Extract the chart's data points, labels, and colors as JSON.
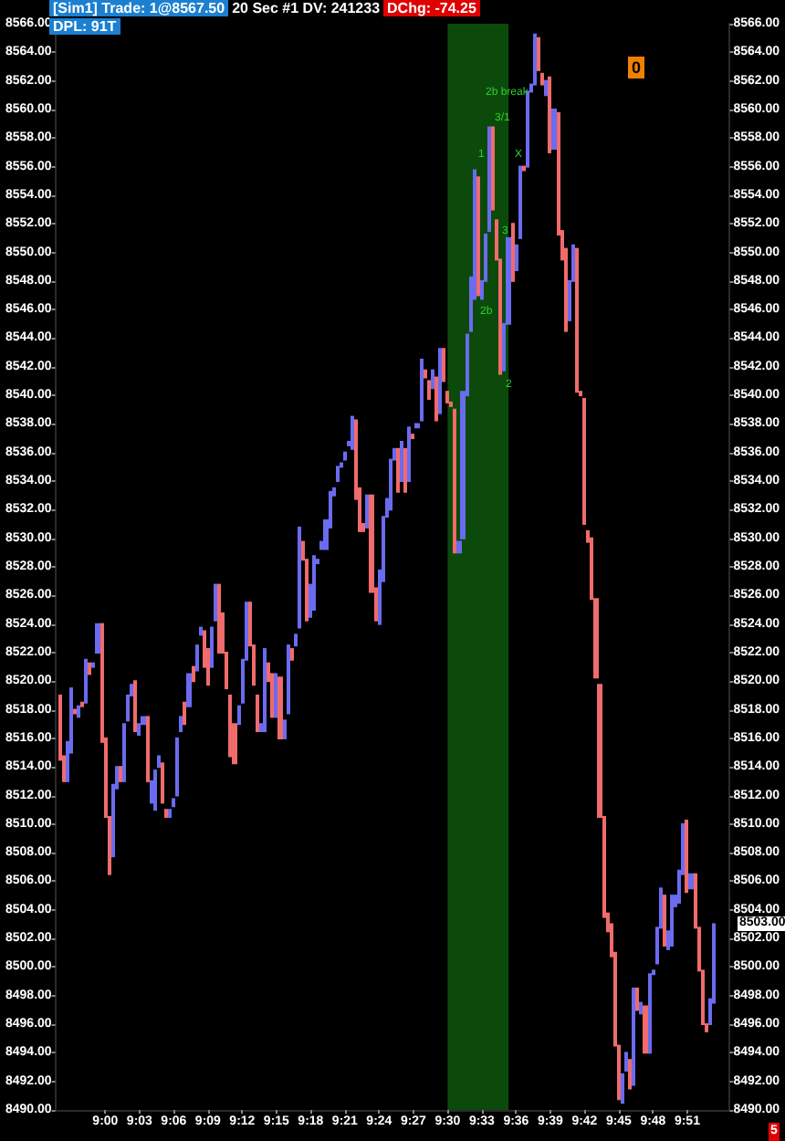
{
  "chart_data": {
    "type": "candlestick",
    "title": "[Sim1]  Trade: 1@8567.50",
    "subtitle": "20 Sec  #1 DV: 241233",
    "annotations": [
      "DChg: -74.25",
      "DPL: 91T",
      "0",
      "5",
      "2b break",
      "3/1",
      "1",
      "X",
      "3",
      "2b",
      "2",
      "8503.00"
    ],
    "colors": [
      "#f06b6b",
      "#f06b6b",
      "#6b6bf0",
      "#6b6bf0",
      "#f06b6b",
      "#6b6bf0",
      "#f06b6b",
      "#6b6bf0",
      "#f06b6b",
      "#6b6bf0",
      "#6b6bf0",
      "#f06b6b",
      "#f06b6b",
      "#f06b6b",
      "#6b6bf0",
      "#6b6bf0",
      "#f06b6b",
      "#6b6bf0",
      "#6b6bf0",
      "#6b6bf0",
      "#f06b6b",
      "#6b6bf0",
      "#6b6bf0",
      "#f06b6b",
      "#6b6bf0",
      "#6b6bf0",
      "#6b6bf0",
      "#f06b6b",
      "#f06b6b",
      "#6b6bf0",
      "#6b6bf0",
      "#6b6bf0",
      "#6b6bf0",
      "#f06b6b",
      "#6b6bf0",
      "#f06b6b",
      "#6b6bf0",
      "#6b6bf0",
      "#f06b6b",
      "#f06b6b",
      "#6b6bf0",
      "#6b6bf0",
      "#f06b6b",
      "#f06b6b",
      "#f06b6b",
      "#f06b6b",
      "#f06b6b",
      "#6b6bf0",
      "#6b6bf0",
      "#6b6bf0",
      "#f06b6b",
      "#f06b6b",
      "#f06b6b",
      "#6b6bf0",
      "#6b6bf0",
      "#f06b6b",
      "#f06b6b",
      "#6b6bf0",
      "#f06b6b",
      "#6b6bf0",
      "#6b6bf0",
      "#f06b6b",
      "#6b6bf0",
      "#6b6bf0",
      "#f06b6b",
      "#f06b6b",
      "#6b6bf0",
      "#6b6bf0",
      "#6b6bf0",
      "#6b6bf0",
      "#6b6bf0",
      "#6b6bf0",
      "#6b6bf0",
      "#6b6bf0",
      "#6b6bf0",
      "#6b6bf0",
      "#6b6bf0",
      "#6b6bf0",
      "#f06b6b",
      "#f06b6b",
      "#f06b6b",
      "#6b6bf0",
      "#f06b6b",
      "#f06b6b",
      "#6b6bf0",
      "#6b6bf0",
      "#6b6bf0",
      "#6b6bf0",
      "#6b6bf0",
      "#f06b6b",
      "#6b6bf0",
      "#f06b6b",
      "#6b6bf0",
      "#f06b6b",
      "#6b6bf0",
      "#6b6bf0",
      "#f06b6b",
      "#f06b6b",
      "#6b6bf0",
      "#f06b6b",
      "#6b6bf0",
      "#f06b6b",
      "#f06b6b",
      "#f06b6b",
      "#f06b6b",
      "#6b6bf0",
      "#6b6bf0",
      "#6b6bf0",
      "#6b6bf0",
      "#6b6bf0",
      "#f06b6b",
      "#6b6bf0",
      "#6b6bf0",
      "#6b6bf0",
      "#f06b6b",
      "#f06b6b",
      "#f06b6b",
      "#6b6bf0",
      "#6b6bf0",
      "#f06b6b",
      "#6b6bf0",
      "#6b6bf0",
      "#f06b6b",
      "#6b6bf0",
      "#6b6bf0",
      "#6b6bf0",
      "#f06b6b",
      "#f06b6b",
      "#6b6bf0",
      "#f06b6b",
      "#6b6bf0",
      "#f06b6b",
      "#f06b6b",
      "#f06b6b",
      "#6b6bf0",
      "#6b6bf0",
      "#f06b6b",
      "#f06b6b",
      "#f06b6b",
      "#f06b6b",
      "#f06b6b",
      "#f06b6b",
      "#f06b6b",
      "#f06b6b",
      "#f06b6b",
      "#f06b6b",
      "#f06b6b",
      "#f06b6b",
      "#6b6bf0",
      "#6b6bf0",
      "#f06b6b",
      "#6b6bf0",
      "#f06b6b",
      "#6b6bf0",
      "#f06b6b",
      "#6b6bf0",
      "#6b6bf0",
      "#6b6bf0",
      "#6b6bf0",
      "#f06b6b",
      "#6b6bf0",
      "#6b6bf0",
      "#6b6bf0",
      "#6b6bf0",
      "#6b6bf0",
      "#f06b6b",
      "#6b6bf0",
      "#f06b6b",
      "#f06b6b",
      "#f06b6b",
      "#f06b6b",
      "#6b6bf0",
      "#6b6bf0"
    ],
    "x": [
      8.9333,
      8.9389,
      8.9444,
      8.95,
      8.9556,
      8.9611,
      8.9667,
      8.9722,
      8.9778,
      8.9833,
      8.9889,
      8.9944,
      9.0,
      9.0056,
      9.0111,
      9.0167,
      9.0222,
      9.0278,
      9.0333,
      9.0389,
      9.0444,
      9.05,
      9.0556,
      9.0611,
      9.0667,
      9.0722,
      9.0778,
      9.0833,
      9.0889,
      9.0944,
      9.1,
      9.1056,
      9.1111,
      9.1167,
      9.1222,
      9.1278,
      9.1333,
      9.1389,
      9.1444,
      9.15,
      9.1556,
      9.1611,
      9.1667,
      9.1722,
      9.1778,
      9.1833,
      9.1889,
      9.1944,
      9.2,
      9.2056,
      9.2111,
      9.2167,
      9.2222,
      9.2278,
      9.2333,
      9.2389,
      9.2444,
      9.25,
      9.2556,
      9.2611,
      9.2667,
      9.2722,
      9.2778,
      9.2833,
      9.2889,
      9.2944,
      9.3,
      9.3056,
      9.3111,
      9.3167,
      9.3222,
      9.3278,
      9.3333,
      9.3389,
      9.3444,
      9.35,
      9.3556,
      9.3611,
      9.3667,
      9.3722,
      9.3778,
      9.3833,
      9.3889,
      9.3944,
      9.4,
      9.4056,
      9.4111,
      9.4167,
      9.4222,
      9.4278,
      9.4333,
      9.4389,
      9.4444,
      9.45,
      9.4556,
      9.4611,
      9.4667,
      9.4722,
      9.4778,
      9.4833,
      9.4889,
      9.4944,
      9.5,
      9.5056,
      9.5111,
      9.5167,
      9.5222,
      9.5278,
      9.5333,
      9.5389,
      9.5444,
      9.55,
      9.5556,
      9.5611,
      9.5667,
      9.5722,
      9.5778,
      9.5833,
      9.5889,
      9.5944,
      9.6,
      9.6056,
      9.6111,
      9.6167,
      9.6222,
      9.6278,
      9.6333,
      9.6389,
      9.6444,
      9.65,
      9.6556,
      9.6611,
      9.6667,
      9.6722,
      9.6778,
      9.6833,
      9.6889,
      9.6944,
      9.7,
      9.7056,
      9.7111,
      9.7167,
      9.7222,
      9.7278,
      9.7333,
      9.7389,
      9.7444,
      9.75,
      9.7556,
      9.7611,
      9.7667,
      9.7722,
      9.7778,
      9.7833,
      9.7889,
      9.7944,
      9.8,
      9.8056,
      9.8111,
      9.8167,
      9.8222,
      9.8278,
      9.8333,
      9.8389,
      9.8444,
      9.85,
      9.8556,
      9.8611,
      9.8667,
      9.8722,
      9.8778,
      9.8833,
      9.8889
    ],
    "ohlc": [
      [
        8519,
        8519,
        8514.5,
        8514.5
      ],
      [
        8514.75,
        8514.75,
        8513,
        8513
      ],
      [
        8513,
        8515.75,
        8513,
        8515.75
      ],
      [
        8515,
        8519.5,
        8515,
        8519.5
      ],
      [
        8518,
        8518,
        8517.75,
        8517.75
      ],
      [
        8517.5,
        8518.25,
        8517.5,
        8518.25
      ],
      [
        8518.5,
        8518.5,
        8518.25,
        8518.25
      ],
      [
        8518.5,
        8521.5,
        8518.5,
        8521.5
      ],
      [
        8521.25,
        8521.25,
        8520.5,
        8520.5
      ],
      [
        8521,
        8521.25,
        8521,
        8521.25
      ],
      [
        8522,
        8524,
        8522,
        8524
      ],
      [
        8524,
        8524,
        8515.75,
        8515.75
      ],
      [
        8516,
        8516,
        8510.5,
        8510.5
      ],
      [
        8510.5,
        8510.5,
        8506.5,
        8506.5
      ],
      [
        8507.75,
        8512.75,
        8507.75,
        8512.75
      ],
      [
        8512.5,
        8514,
        8512.5,
        8514
      ],
      [
        8514,
        8514,
        8513,
        8513
      ],
      [
        8513,
        8517,
        8513,
        8517
      ],
      [
        8517.25,
        8519,
        8517.25,
        8519
      ],
      [
        8519,
        8519.75,
        8519,
        8519.75
      ],
      [
        8520,
        8520,
        8516.5,
        8516.5
      ],
      [
        8516.25,
        8517,
        8516.25,
        8517
      ],
      [
        8517,
        8517.5,
        8517,
        8517.5
      ],
      [
        8517.5,
        8517.5,
        8513,
        8513
      ],
      [
        8511.5,
        8513,
        8511.5,
        8513
      ],
      [
        8511,
        8513.75,
        8511,
        8513.75
      ],
      [
        8514,
        8514.75,
        8514,
        8514.75
      ],
      [
        8514.25,
        8514.25,
        8511.5,
        8511.5
      ],
      [
        8511,
        8511,
        8510.5,
        8510.5
      ],
      [
        8510.5,
        8511,
        8510.5,
        8511
      ],
      [
        8511.25,
        8511.75,
        8511.25,
        8511.75
      ],
      [
        8512,
        8516,
        8512,
        8516
      ],
      [
        8516.5,
        8517.5,
        8516.5,
        8517.5
      ],
      [
        8518.5,
        8518.5,
        8517,
        8517
      ],
      [
        8518.25,
        8520.5,
        8518.25,
        8520.5
      ],
      [
        8521,
        8521,
        8520,
        8520
      ],
      [
        8520.75,
        8522.5,
        8520.75,
        8522.5
      ],
      [
        8523.25,
        8523.75,
        8523.25,
        8523.75
      ],
      [
        8523.5,
        8523.5,
        8521,
        8521
      ],
      [
        8522.25,
        8522.25,
        8519.75,
        8519.75
      ],
      [
        8521,
        8523.75,
        8521,
        8523.75
      ],
      [
        8524.25,
        8526.75,
        8524.25,
        8526.75
      ],
      [
        8526.75,
        8526.75,
        8522,
        8522
      ],
      [
        8524.75,
        8524.75,
        8522,
        8522
      ],
      [
        8522,
        8522,
        8519.5,
        8519.5
      ],
      [
        8519,
        8519,
        8514.75,
        8514.75
      ],
      [
        8517,
        8517,
        8514.25,
        8514.25
      ],
      [
        8517,
        8518.25,
        8517,
        8518.25
      ],
      [
        8518.5,
        8521.5,
        8518.5,
        8521.5
      ],
      [
        8521.5,
        8525.5,
        8521.5,
        8525.5
      ],
      [
        8525.5,
        8525.5,
        8522.5,
        8522.5
      ],
      [
        8522.5,
        8522.5,
        8519.75,
        8519.75
      ],
      [
        8519,
        8519,
        8516.5,
        8516.5
      ],
      [
        8516.5,
        8517,
        8516.5,
        8517
      ],
      [
        8516.5,
        8522.25,
        8516.5,
        8522.25
      ],
      [
        8521.25,
        8521.25,
        8520,
        8520
      ],
      [
        8520.5,
        8520.5,
        8517.5,
        8517.5
      ],
      [
        8517.5,
        8520.5,
        8517.5,
        8520.5
      ],
      [
        8520.25,
        8520.25,
        8516,
        8516
      ],
      [
        8516,
        8517.25,
        8516,
        8517.25
      ],
      [
        8517.75,
        8522.5,
        8517.75,
        8522.5
      ],
      [
        8522.25,
        8522.25,
        8521.5,
        8521.5
      ],
      [
        8522.5,
        8523.25,
        8522.5,
        8523.25
      ],
      [
        8523.75,
        8530.75,
        8523.75,
        8530.75
      ],
      [
        8529.75,
        8529.75,
        8528.5,
        8528.5
      ],
      [
        8528.5,
        8528.5,
        8524.25,
        8524.25
      ],
      [
        8524.5,
        8526.75,
        8524.5,
        8526.75
      ],
      [
        8525,
        8528.75,
        8525,
        8528.75
      ],
      [
        8528.25,
        8528.5,
        8528.25,
        8528.5
      ],
      [
        8529.25,
        8529.75,
        8529.25,
        8529.75
      ],
      [
        8529.25,
        8531.25,
        8529.25,
        8531.25
      ],
      [
        8530.75,
        8533.25,
        8530.75,
        8533.25
      ],
      [
        8533,
        8533.5,
        8533,
        8533.5
      ],
      [
        8534,
        8535,
        8534,
        8535
      ],
      [
        8535,
        8535.25,
        8535,
        8535.25
      ],
      [
        8535.5,
        8536,
        8535.5,
        8536
      ],
      [
        8536.5,
        8536.75,
        8536.5,
        8536.75
      ],
      [
        8536.25,
        8538.5,
        8536.25,
        8538.5
      ],
      [
        8538.25,
        8538.25,
        8532.75,
        8532.75
      ],
      [
        8533.5,
        8533.5,
        8530.5,
        8530.5
      ],
      [
        8531,
        8531,
        8530.5,
        8530.5
      ],
      [
        8530.75,
        8533,
        8530.75,
        8533
      ],
      [
        8533,
        8533,
        8526.25,
        8526.25
      ],
      [
        8526.5,
        8526.5,
        8524.25,
        8524.25
      ],
      [
        8524,
        8527.75,
        8524,
        8527.75
      ],
      [
        8527,
        8531.5,
        8527,
        8531.5
      ],
      [
        8531.5,
        8532.75,
        8531.5,
        8532.75
      ],
      [
        8532,
        8535.5,
        8532,
        8535.5
      ],
      [
        8535.5,
        8536.25,
        8535.5,
        8536.25
      ],
      [
        8536.25,
        8536.25,
        8533.25,
        8533.25
      ],
      [
        8534,
        8536.75,
        8534,
        8536.75
      ],
      [
        8536.25,
        8536.25,
        8533.25,
        8533.25
      ],
      [
        8534,
        8537.75,
        8534,
        8537.75
      ],
      [
        8537.25,
        8537.25,
        8537,
        8537
      ],
      [
        8537.75,
        8538,
        8537.75,
        8538
      ],
      [
        8538.25,
        8542.5,
        8538.25,
        8542.5
      ],
      [
        8541.75,
        8541.75,
        8541.25,
        8541.25
      ],
      [
        8541,
        8541,
        8539.75,
        8539.75
      ],
      [
        8540.5,
        8541.75,
        8540.5,
        8541.75
      ],
      [
        8541.25,
        8541.25,
        8538.25,
        8538.25
      ],
      [
        8538.75,
        8543.25,
        8538.75,
        8543.25
      ],
      [
        8543.25,
        8543.25,
        8541,
        8541
      ],
      [
        8540.25,
        8540.25,
        8539.5,
        8539.5
      ],
      [
        8539.5,
        8539.5,
        8539.25,
        8539.25
      ],
      [
        8539,
        8539,
        8529,
        8529
      ],
      [
        8529,
        8529.75,
        8529,
        8529.75
      ],
      [
        8530,
        8540.25,
        8530,
        8540.25
      ],
      [
        8540,
        8544.25,
        8540,
        8544.25
      ],
      [
        8544.5,
        8548.25,
        8544.5,
        8548.25
      ],
      [
        8546.75,
        8555.75,
        8546.75,
        8555.75
      ],
      [
        8555.25,
        8555.25,
        8547,
        8547
      ],
      [
        8546.75,
        8548,
        8546.75,
        8548
      ],
      [
        8548,
        8551.25,
        8548,
        8551.25
      ],
      [
        8551.5,
        8558.75,
        8551.5,
        8558.75
      ],
      [
        8558.75,
        8558.75,
        8553,
        8553
      ],
      [
        8552.25,
        8552.25,
        8549.5,
        8549.5
      ],
      [
        8549.5,
        8549.5,
        8541.5,
        8541.5
      ],
      [
        8541.75,
        8545,
        8541.75,
        8545
      ],
      [
        8545,
        8551,
        8545,
        8551
      ],
      [
        8552,
        8552,
        8548,
        8548
      ],
      [
        8548.75,
        8550.5,
        8548.75,
        8550.5
      ],
      [
        8551,
        8556,
        8551,
        8556
      ],
      [
        8556,
        8556,
        8555.75,
        8555.75
      ],
      [
        8556,
        8561.25,
        8556,
        8561.25
      ],
      [
        8561.25,
        8561.75,
        8561.25,
        8561.75
      ],
      [
        8561.75,
        8565.25,
        8561.75,
        8565.25
      ],
      [
        8565,
        8565,
        8562.75,
        8562.75
      ],
      [
        8562.5,
        8562.5,
        8561.75,
        8561.75
      ],
      [
        8561,
        8562,
        8561,
        8562
      ],
      [
        8562.25,
        8562.25,
        8557,
        8557
      ],
      [
        8557.25,
        8560,
        8557.25,
        8560
      ],
      [
        8559.75,
        8559.75,
        8551.25,
        8551.25
      ],
      [
        8551.5,
        8551.5,
        8549.5,
        8549.5
      ],
      [
        8550.25,
        8550.25,
        8544.5,
        8544.5
      ],
      [
        8545.25,
        8548,
        8545.25,
        8548
      ],
      [
        8548,
        8550.5,
        8548,
        8550.5
      ],
      [
        8550.25,
        8550.25,
        8540.25,
        8540.25
      ],
      [
        8540.25,
        8540.25,
        8540,
        8540
      ],
      [
        8539.75,
        8539.75,
        8531,
        8531
      ],
      [
        8530.5,
        8530.5,
        8529.75,
        8529.75
      ],
      [
        8530,
        8530,
        8525.75,
        8525.75
      ],
      [
        8525.75,
        8525.75,
        8520.25,
        8520.25
      ],
      [
        8519.75,
        8519.75,
        8510.5,
        8510.5
      ],
      [
        8510.5,
        8510.5,
        8503.5,
        8503.5
      ],
      [
        8503.75,
        8503.75,
        8502.5,
        8502.5
      ],
      [
        8503,
        8503,
        8500.75,
        8500.75
      ],
      [
        8501,
        8501,
        8494.5,
        8494.5
      ],
      [
        8494.5,
        8494.5,
        8490.75,
        8490.75
      ],
      [
        8490.5,
        8492.5,
        8490.5,
        8492.5
      ],
      [
        8492.75,
        8494,
        8492.75,
        8494
      ],
      [
        8493.5,
        8493.5,
        8491.5,
        8491.5
      ],
      [
        8491.75,
        8498.5,
        8491.75,
        8498.5
      ],
      [
        8498.5,
        8498.5,
        8497,
        8497
      ],
      [
        8496.75,
        8497.5,
        8496.75,
        8497.5
      ],
      [
        8497.25,
        8497.25,
        8494,
        8494
      ],
      [
        8494,
        8499.5,
        8494,
        8499.5
      ],
      [
        8499.5,
        8499.75,
        8499.5,
        8499.75
      ],
      [
        8500.25,
        8502.75,
        8500.25,
        8502.75
      ],
      [
        8502.75,
        8505.5,
        8502.75,
        8505.5
      ],
      [
        8505,
        8505,
        8501.5,
        8501.5
      ],
      [
        8501.25,
        8502.5,
        8501.25,
        8502.5
      ],
      [
        8501.5,
        8505,
        8501.5,
        8505
      ],
      [
        8504.25,
        8505,
        8504.25,
        8505
      ],
      [
        8504.5,
        8506.75,
        8504.5,
        8506.75
      ],
      [
        8506.5,
        8510,
        8506.5,
        8510
      ],
      [
        8510.25,
        8510.25,
        8505.25,
        8505.25
      ],
      [
        8505.5,
        8506.5,
        8505.5,
        8506.5
      ],
      [
        8506.5,
        8506.5,
        8502.75,
        8502.75
      ],
      [
        8502.75,
        8502.75,
        8499.75,
        8499.75
      ],
      [
        8499.75,
        8499.75,
        8496,
        8496
      ],
      [
        8496,
        8496,
        8495.5,
        8495.5
      ],
      [
        8496,
        8497.75,
        8496,
        8497.75
      ],
      [
        8497.5,
        8503,
        8497.5,
        8503
      ]
    ],
    "xlim": [
      8.927,
      9.912
    ],
    "xticks": [
      {
        "value": 9.0,
        "label": "9:00"
      },
      {
        "value": 9.05,
        "label": "9:03"
      },
      {
        "value": 9.1,
        "label": "9:06"
      },
      {
        "value": 9.15,
        "label": "9:09"
      },
      {
        "value": 9.2,
        "label": "9:12"
      },
      {
        "value": 9.25,
        "label": "9:15"
      },
      {
        "value": 9.3,
        "label": "9:18"
      },
      {
        "value": 9.35,
        "label": "9:21"
      },
      {
        "value": 9.4,
        "label": "9:24"
      },
      {
        "value": 9.45,
        "label": "9:27"
      },
      {
        "value": 9.5,
        "label": "9:30"
      },
      {
        "value": 9.55,
        "label": "9:33"
      },
      {
        "value": 9.6,
        "label": "9:36"
      },
      {
        "value": 9.65,
        "label": "9:39"
      },
      {
        "value": 9.7,
        "label": "9:42"
      },
      {
        "value": 9.75,
        "label": "9:45"
      },
      {
        "value": 9.8,
        "label": "9:48"
      },
      {
        "value": 9.85,
        "label": "9:51"
      }
    ],
    "ylim": [
      8490,
      8566
    ],
    "yticks": [
      {
        "value": 8490,
        "label": "8490.00"
      },
      {
        "value": 8492,
        "label": "8492.00"
      },
      {
        "value": 8494,
        "label": "8494.00"
      },
      {
        "value": 8496,
        "label": "8496.00"
      },
      {
        "value": 8498,
        "label": "8498.00"
      },
      {
        "value": 8500,
        "label": "8500.00"
      },
      {
        "value": 8502,
        "label": "8502.00"
      },
      {
        "value": 8504,
        "label": "8504.00"
      },
      {
        "value": 8506,
        "label": "8506.00"
      },
      {
        "value": 8508,
        "label": "8508.00"
      },
      {
        "value": 8510,
        "label": "8510.00"
      },
      {
        "value": 8512,
        "label": "8512.00"
      },
      {
        "value": 8514,
        "label": "8514.00"
      },
      {
        "value": 8516,
        "label": "8516.00"
      },
      {
        "value": 8518,
        "label": "8518.00"
      },
      {
        "value": 8520,
        "label": "8520.00"
      },
      {
        "value": 8522,
        "label": "8522.00"
      },
      {
        "value": 8524,
        "label": "8524.00"
      },
      {
        "value": 8526,
        "label": "8526.00"
      },
      {
        "value": 8528,
        "label": "8528.00"
      },
      {
        "value": 8530,
        "label": "8530.00"
      },
      {
        "value": 8532,
        "label": "8532.00"
      },
      {
        "value": 8534,
        "label": "8534.00"
      },
      {
        "value": 8536,
        "label": "8536.00"
      },
      {
        "value": 8538,
        "label": "8538.00"
      },
      {
        "value": 8540,
        "label": "8540.00"
      },
      {
        "value": 8542,
        "label": "8542.00"
      },
      {
        "value": 8544,
        "label": "8544.00"
      },
      {
        "value": 8546,
        "label": "8546.00"
      },
      {
        "value": 8548,
        "label": "8548.00"
      },
      {
        "value": 8550,
        "label": "8550.00"
      },
      {
        "value": 8552,
        "label": "8552.00"
      },
      {
        "value": 8554,
        "label": "8554.00"
      },
      {
        "value": 8556,
        "label": "8556.00"
      },
      {
        "value": 8558,
        "label": "8558.00"
      },
      {
        "value": 8560,
        "label": "8560.00"
      },
      {
        "value": 8562,
        "label": "8562.00"
      },
      {
        "value": 8564,
        "label": "8564.00"
      },
      {
        "value": 8566,
        "label": "8566.00"
      }
    ],
    "y2lim": [
      8490,
      8566
    ],
    "y2ticks": [
      {
        "value": 8490,
        "label": "8490.00"
      },
      {
        "value": 8492,
        "label": "8492.00"
      },
      {
        "value": 8494,
        "label": "8494.00"
      },
      {
        "value": 8496,
        "label": "8496.00"
      },
      {
        "value": 8498,
        "label": "8498.00"
      },
      {
        "value": 8500,
        "label": "8500.00"
      },
      {
        "value": 8502,
        "label": "8502.00"
      },
      {
        "value": 8504,
        "label": "8504.00"
      },
      {
        "value": 8506,
        "label": "8506.00"
      },
      {
        "value": 8508,
        "label": "8508.00"
      },
      {
        "value": 8510,
        "label": "8510.00"
      },
      {
        "value": 8512,
        "label": "8512.00"
      },
      {
        "value": 8514,
        "label": "8514.00"
      },
      {
        "value": 8516,
        "label": "8516.00"
      },
      {
        "value": 8518,
        "label": "8518.00"
      },
      {
        "value": 8520,
        "label": "8520.00"
      },
      {
        "value": 8522,
        "label": "8522.00"
      },
      {
        "value": 8524,
        "label": "8524.00"
      },
      {
        "value": 8526,
        "label": "8526.00"
      },
      {
        "value": 8528,
        "label": "8528.00"
      },
      {
        "value": 8530,
        "label": "8530.00"
      },
      {
        "value": 8532,
        "label": "8532.00"
      },
      {
        "value": 8534,
        "label": "8534.00"
      },
      {
        "value": 8536,
        "label": "8536.00"
      },
      {
        "value": 8538,
        "label": "8538.00"
      },
      {
        "value": 8540,
        "label": "8540.00"
      },
      {
        "value": 8542,
        "label": "8542.00"
      },
      {
        "value": 8544,
        "label": "8544.00"
      },
      {
        "value": 8546,
        "label": "8546.00"
      },
      {
        "value": 8548,
        "label": "8548.00"
      },
      {
        "value": 8550,
        "label": "8550.00"
      },
      {
        "value": 8552,
        "label": "8552.00"
      },
      {
        "value": 8554,
        "label": "8554.00"
      },
      {
        "value": 8556,
        "label": "8556.00"
      },
      {
        "value": 8558,
        "label": "8558.00"
      },
      {
        "value": 8560,
        "label": "8560.00"
      },
      {
        "value": 8562,
        "label": "8562.00"
      },
      {
        "value": 8564,
        "label": "8564.00"
      },
      {
        "value": 8566,
        "label": "8566.00"
      }
    ],
    "bands": [
      {
        "axis": "x",
        "from": 9.5,
        "to": 9.589,
        "color": "#0b4a0b"
      }
    ],
    "grid": false
  }
}
